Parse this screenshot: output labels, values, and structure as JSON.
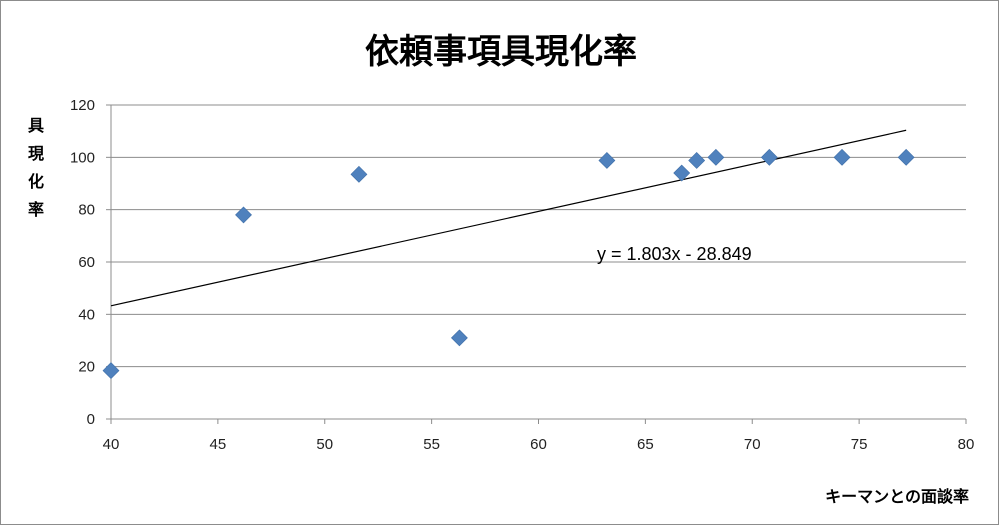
{
  "chart_data": {
    "type": "scatter",
    "title": "依頼事項具現化率",
    "xlabel": "キーマンとの面談率",
    "ylabel": "具現化率",
    "xlim": [
      40,
      80
    ],
    "ylim": [
      0,
      120
    ],
    "x_ticks": [
      40,
      45,
      50,
      55,
      60,
      65,
      70,
      75,
      80
    ],
    "y_ticks": [
      0,
      20,
      40,
      60,
      80,
      100,
      120
    ],
    "grid": "horizontal",
    "marker": "diamond",
    "series": [
      {
        "color": "#4f81bd",
        "points": [
          {
            "x": 40.0,
            "y": 18.5
          },
          {
            "x": 46.2,
            "y": 78.0
          },
          {
            "x": 51.6,
            "y": 93.5
          },
          {
            "x": 56.3,
            "y": 31.0
          },
          {
            "x": 63.2,
            "y": 98.8
          },
          {
            "x": 66.7,
            "y": 94.0
          },
          {
            "x": 67.4,
            "y": 98.8
          },
          {
            "x": 68.3,
            "y": 100.0
          },
          {
            "x": 70.8,
            "y": 100.0
          },
          {
            "x": 74.2,
            "y": 100.0
          },
          {
            "x": 77.2,
            "y": 100.0
          }
        ]
      }
    ],
    "trendline": {
      "type": "linear",
      "slope": 1.803,
      "intercept": -28.849,
      "x_range": [
        40,
        77.2
      ],
      "color": "#000000",
      "equation_label": "y = 1.803x - 28.849"
    }
  }
}
